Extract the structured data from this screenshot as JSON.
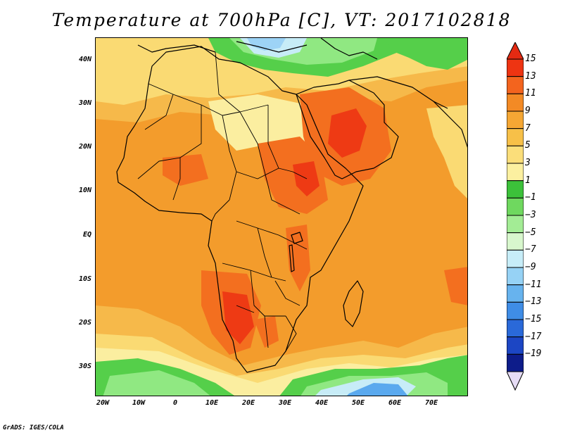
{
  "title": "Temperature at 700hPa [C], VT: 2017102818",
  "credit": "GrADS: IGES/COLA",
  "map": {
    "lat_labels": [
      "40N",
      "30N",
      "20N",
      "10N",
      "EQ",
      "10S",
      "20S",
      "30S"
    ],
    "lon_labels": [
      "20W",
      "10W",
      "0",
      "10E",
      "20E",
      "30E",
      "40E",
      "50E",
      "60E",
      "70E"
    ],
    "palette": {
      "hot": "#ee3a14",
      "warm": "#f36f1f",
      "orange": "#f39c2c",
      "light_orange": "#f6b94a",
      "yellow": "#fada73",
      "pale_yellow": "#fbeea0",
      "green": "#55cf4a",
      "light_green": "#90e882",
      "pale_green": "#c6f2b8",
      "pale_blue": "#c7ecf7",
      "light_blue": "#9dd3f6",
      "blue": "#5aa9ee"
    }
  },
  "colorbar": {
    "labels": [
      "15",
      "13",
      "11",
      "9",
      "7",
      "5",
      "3",
      "1",
      "−1",
      "−3",
      "−5",
      "−7",
      "−9",
      "−11",
      "−13",
      "−15",
      "−17",
      "−19"
    ],
    "colors": [
      "#ee3412",
      "#f3641e",
      "#f38a25",
      "#f5a734",
      "#f7c048",
      "#fbde7a",
      "#fcf0a0",
      "#3cc13a",
      "#6fd85f",
      "#a3ec95",
      "#d8f7cd",
      "#c7edf8",
      "#96d2f5",
      "#67b3ee",
      "#3f8de6",
      "#2a69d9",
      "#1c46c4",
      "#0d1c8a"
    ],
    "top_arrow_color": "#e52a12",
    "bottom_arrow_color": "#e6dcf5"
  }
}
